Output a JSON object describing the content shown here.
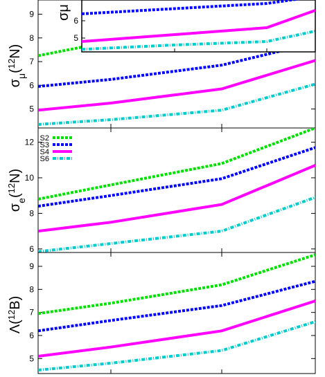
{
  "chart_data": [
    {
      "type": "line",
      "panel": "sigma-mu-12N",
      "ylabel": "σμ(12N)",
      "ylabel_base": "σ",
      "ylabel_sub": "μ",
      "ylabel_paren_open": "(",
      "ylabel_sup": "12",
      "ylabel_elem": "N)",
      "ylim": [
        4.2,
        9.6
      ],
      "yticks": [
        5,
        6,
        7,
        8,
        9
      ],
      "x": [
        0,
        1,
        2,
        3
      ],
      "xlim": [
        0,
        3
      ],
      "series": [
        {
          "name": "S2",
          "color": "#00e000",
          "dash": "4,2",
          "values": [
            7.25,
            7.85,
            8.8,
            9.6
          ]
        },
        {
          "name": "S3",
          "color": "#0000ff",
          "dash": "4,2",
          "values": [
            5.95,
            6.25,
            6.85,
            7.8
          ]
        },
        {
          "name": "S4",
          "color": "#ff00ff",
          "dash": "none",
          "values": [
            4.95,
            5.25,
            5.85,
            7.05
          ]
        },
        {
          "name": "S6",
          "color": "#00cccc",
          "dash": "5,2,1,2",
          "values": [
            4.35,
            4.55,
            4.95,
            6.05
          ]
        }
      ]
    },
    {
      "type": "line",
      "panel": "sigma-mu-inset",
      "ylabel": "σμ",
      "ylim": [
        4.2,
        7.2
      ],
      "yticks": [
        5,
        6
      ],
      "x": [
        0,
        1,
        2,
        3
      ],
      "xlim": [
        0,
        3
      ],
      "series": [
        {
          "name": "S3",
          "color": "#0000ff",
          "dash": "4,2",
          "values": [
            6.4,
            6.7,
            7.0,
            7.4
          ]
        },
        {
          "name": "S4",
          "color": "#ff00ff",
          "dash": "none",
          "values": [
            4.8,
            5.2,
            5.6,
            6.6
          ]
        },
        {
          "name": "S6",
          "color": "#00cccc",
          "dash": "5,2,1,2",
          "values": [
            4.35,
            4.6,
            4.8,
            5.4
          ]
        }
      ]
    },
    {
      "type": "line",
      "panel": "sigma-e-12N",
      "ylabel": "σe(12N)",
      "ylabel_base": "σ",
      "ylabel_sub": "e",
      "ylabel_paren_open": "(",
      "ylabel_sup": "12",
      "ylabel_elem": "N)",
      "ylim": [
        5.8,
        12.8
      ],
      "yticks": [
        6,
        8,
        10,
        12
      ],
      "x": [
        0,
        1,
        2,
        3
      ],
      "xlim": [
        0,
        3
      ],
      "legend": {
        "position": "top-left",
        "labels": [
          "S2",
          "S3",
          "S4",
          "S6"
        ]
      },
      "series": [
        {
          "name": "S2",
          "color": "#00e000",
          "dash": "4,2",
          "values": [
            8.8,
            9.6,
            10.8,
            12.8
          ]
        },
        {
          "name": "S3",
          "color": "#0000ff",
          "dash": "4,2",
          "values": [
            8.4,
            9.0,
            9.95,
            11.7
          ]
        },
        {
          "name": "S4",
          "color": "#ff00ff",
          "dash": "none",
          "values": [
            7.0,
            7.5,
            8.5,
            10.7
          ]
        },
        {
          "name": "S6",
          "color": "#00cccc",
          "dash": "5,2,1,2",
          "values": [
            5.85,
            6.3,
            7.0,
            8.9
          ]
        }
      ]
    },
    {
      "type": "line",
      "panel": "lambda-12B",
      "ylabel": "Λ(12B)",
      "ylabel_base": "Λ",
      "ylabel_sub": "",
      "ylabel_paren_open": "(",
      "ylabel_sup": "12",
      "ylabel_elem": "B)",
      "ylim": [
        4.35,
        9.6
      ],
      "yticks": [
        5,
        6,
        7,
        8,
        9
      ],
      "x": [
        0,
        1,
        2,
        3
      ],
      "xlim": [
        0,
        3
      ],
      "series": [
        {
          "name": "S2",
          "color": "#00e000",
          "dash": "4,2",
          "values": [
            6.95,
            7.4,
            8.2,
            9.5
          ]
        },
        {
          "name": "S3",
          "color": "#0000ff",
          "dash": "4,2",
          "values": [
            6.2,
            6.65,
            7.3,
            8.35
          ]
        },
        {
          "name": "S4",
          "color": "#ff00ff",
          "dash": "none",
          "values": [
            5.1,
            5.5,
            6.2,
            7.5
          ]
        },
        {
          "name": "S6",
          "color": "#00cccc",
          "dash": "5,2,1,2",
          "values": [
            4.5,
            4.8,
            5.35,
            6.6
          ]
        }
      ]
    }
  ]
}
